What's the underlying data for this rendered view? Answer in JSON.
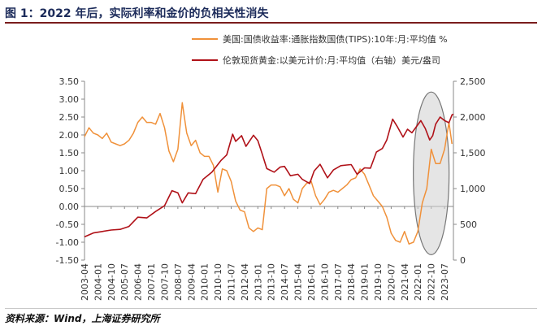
{
  "title": "图 1：2022 年后，实际利率和金价的负相关性消失",
  "source": "资料来源：Wind，上海证券研究所",
  "colors": {
    "tips": "#f0913a",
    "gold": "#b01118",
    "ellipse_fill": "#cfcfcf",
    "ellipse_stroke": "#777777",
    "axis": "#888888"
  },
  "chart_data": {
    "type": "line",
    "x_range": [
      "2003-04",
      "2024-01"
    ],
    "x_tick_labels": [
      "2003-04",
      "2004-01",
      "2004-10",
      "2005-07",
      "2006-04",
      "2007-01",
      "2007-10",
      "2008-07",
      "2009-04",
      "2010-01",
      "2010-10",
      "2011-07",
      "2012-04",
      "2013-01",
      "2013-10",
      "2014-07",
      "2015-04",
      "2016-01",
      "2016-10",
      "2017-07",
      "2018-04",
      "2019-01",
      "2019-10",
      "2020-07",
      "2021-04",
      "2022-01",
      "2022-10",
      "2023-07"
    ],
    "y_left": {
      "range": [
        -1.5,
        3.5
      ],
      "ticks": [
        "-1.50",
        "-1.00",
        "-0.50",
        "0.00",
        "0.50",
        "1.00",
        "1.50",
        "2.00",
        "2.50",
        "3.00",
        "3.50"
      ]
    },
    "y_right": {
      "range": [
        0,
        2500
      ],
      "ticks": [
        "0",
        "500",
        "1,000",
        "1,500",
        "2,000",
        "2,500"
      ]
    },
    "series": [
      {
        "name": "美国:国债收益率:通胀指数国债(TIPS):10年:月:平均值 %",
        "axis": "left",
        "points": [
          [
            "2003-04",
            1.95
          ],
          [
            "2003-07",
            2.2
          ],
          [
            "2003-10",
            2.05
          ],
          [
            "2004-01",
            2.0
          ],
          [
            "2004-04",
            1.9
          ],
          [
            "2004-07",
            2.05
          ],
          [
            "2004-10",
            1.8
          ],
          [
            "2005-01",
            1.75
          ],
          [
            "2005-04",
            1.7
          ],
          [
            "2005-07",
            1.75
          ],
          [
            "2005-10",
            1.85
          ],
          [
            "2006-01",
            2.05
          ],
          [
            "2006-04",
            2.35
          ],
          [
            "2006-07",
            2.5
          ],
          [
            "2006-10",
            2.35
          ],
          [
            "2007-01",
            2.35
          ],
          [
            "2007-04",
            2.3
          ],
          [
            "2007-07",
            2.6
          ],
          [
            "2007-10",
            2.2
          ],
          [
            "2008-01",
            1.55
          ],
          [
            "2008-04",
            1.25
          ],
          [
            "2008-07",
            1.6
          ],
          [
            "2008-10",
            2.9
          ],
          [
            "2009-01",
            2.05
          ],
          [
            "2009-04",
            1.7
          ],
          [
            "2009-07",
            1.85
          ],
          [
            "2009-10",
            1.5
          ],
          [
            "2010-01",
            1.4
          ],
          [
            "2010-04",
            1.4
          ],
          [
            "2010-07",
            1.15
          ],
          [
            "2010-10",
            0.4
          ],
          [
            "2011-01",
            1.05
          ],
          [
            "2011-04",
            1.0
          ],
          [
            "2011-07",
            0.7
          ],
          [
            "2011-10",
            0.15
          ],
          [
            "2012-01",
            -0.1
          ],
          [
            "2012-04",
            -0.15
          ],
          [
            "2012-07",
            -0.6
          ],
          [
            "2012-10",
            -0.7
          ],
          [
            "2013-01",
            -0.6
          ],
          [
            "2013-04",
            -0.65
          ],
          [
            "2013-07",
            0.5
          ],
          [
            "2013-10",
            0.6
          ],
          [
            "2014-01",
            0.6
          ],
          [
            "2014-04",
            0.55
          ],
          [
            "2014-07",
            0.3
          ],
          [
            "2014-10",
            0.5
          ],
          [
            "2015-01",
            0.2
          ],
          [
            "2015-04",
            0.1
          ],
          [
            "2015-07",
            0.5
          ],
          [
            "2015-10",
            0.65
          ],
          [
            "2016-01",
            0.7
          ],
          [
            "2016-04",
            0.3
          ],
          [
            "2016-07",
            0.05
          ],
          [
            "2016-10",
            0.2
          ],
          [
            "2017-01",
            0.4
          ],
          [
            "2017-04",
            0.45
          ],
          [
            "2017-07",
            0.4
          ],
          [
            "2017-10",
            0.5
          ],
          [
            "2018-01",
            0.6
          ],
          [
            "2018-04",
            0.75
          ],
          [
            "2018-07",
            0.8
          ],
          [
            "2018-10",
            1.05
          ],
          [
            "2019-01",
            0.9
          ],
          [
            "2019-04",
            0.6
          ],
          [
            "2019-07",
            0.3
          ],
          [
            "2019-10",
            0.15
          ],
          [
            "2020-01",
            0.0
          ],
          [
            "2020-04",
            -0.3
          ],
          [
            "2020-07",
            -0.75
          ],
          [
            "2020-10",
            -0.95
          ],
          [
            "2021-01",
            -1.0
          ],
          [
            "2021-04",
            -0.7
          ],
          [
            "2021-07",
            -1.05
          ],
          [
            "2021-10",
            -1.0
          ],
          [
            "2022-01",
            -0.7
          ],
          [
            "2022-04",
            0.1
          ],
          [
            "2022-07",
            0.5
          ],
          [
            "2022-10",
            1.6
          ],
          [
            "2023-01",
            1.2
          ],
          [
            "2023-04",
            1.2
          ],
          [
            "2023-07",
            1.6
          ],
          [
            "2023-10",
            2.35
          ],
          [
            "2023-12",
            1.75
          ]
        ]
      },
      {
        "name": "伦敦现货黄金:以美元计价:月:平均值（右轴）美元/盎司",
        "axis": "right",
        "points": [
          [
            "2003-04",
            325
          ],
          [
            "2003-10",
            380
          ],
          [
            "2004-04",
            400
          ],
          [
            "2004-10",
            420
          ],
          [
            "2005-04",
            430
          ],
          [
            "2005-10",
            470
          ],
          [
            "2006-04",
            600
          ],
          [
            "2006-10",
            590
          ],
          [
            "2007-04",
            680
          ],
          [
            "2007-10",
            760
          ],
          [
            "2008-03",
            970
          ],
          [
            "2008-07",
            940
          ],
          [
            "2008-10",
            800
          ],
          [
            "2009-02",
            940
          ],
          [
            "2009-07",
            930
          ],
          [
            "2009-12",
            1130
          ],
          [
            "2010-06",
            1230
          ],
          [
            "2010-12",
            1390
          ],
          [
            "2011-04",
            1470
          ],
          [
            "2011-08",
            1760
          ],
          [
            "2011-10",
            1660
          ],
          [
            "2012-02",
            1740
          ],
          [
            "2012-05",
            1590
          ],
          [
            "2012-10",
            1745
          ],
          [
            "2013-01",
            1670
          ],
          [
            "2013-04",
            1480
          ],
          [
            "2013-07",
            1280
          ],
          [
            "2013-12",
            1230
          ],
          [
            "2014-04",
            1300
          ],
          [
            "2014-07",
            1310
          ],
          [
            "2014-11",
            1180
          ],
          [
            "2015-04",
            1200
          ],
          [
            "2015-07",
            1130
          ],
          [
            "2015-12",
            1070
          ],
          [
            "2016-03",
            1245
          ],
          [
            "2016-07",
            1340
          ],
          [
            "2016-12",
            1150
          ],
          [
            "2017-04",
            1260
          ],
          [
            "2017-09",
            1320
          ],
          [
            "2018-01",
            1330
          ],
          [
            "2018-04",
            1335
          ],
          [
            "2018-08",
            1200
          ],
          [
            "2019-01",
            1290
          ],
          [
            "2019-05",
            1285
          ],
          [
            "2019-09",
            1510
          ],
          [
            "2020-01",
            1560
          ],
          [
            "2020-04",
            1680
          ],
          [
            "2020-08",
            1970
          ],
          [
            "2020-11",
            1870
          ],
          [
            "2021-03",
            1720
          ],
          [
            "2021-06",
            1830
          ],
          [
            "2021-09",
            1780
          ],
          [
            "2022-03",
            1950
          ],
          [
            "2022-06",
            1840
          ],
          [
            "2022-09",
            1680
          ],
          [
            "2022-11",
            1740
          ],
          [
            "2023-01",
            1900
          ],
          [
            "2023-04",
            2000
          ],
          [
            "2023-07",
            1950
          ],
          [
            "2023-10",
            1920
          ],
          [
            "2023-12",
            2030
          ],
          [
            "2024-01",
            2040
          ]
        ]
      }
    ],
    "annotation": "ellipse highlighting 2022-2023 divergence"
  }
}
